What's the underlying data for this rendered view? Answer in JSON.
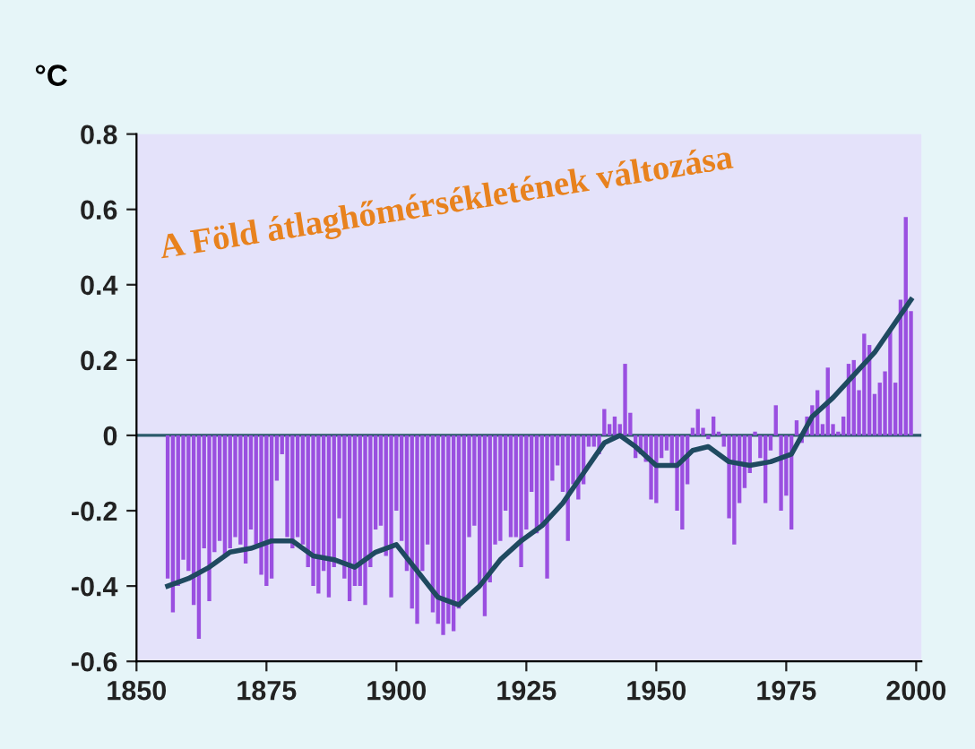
{
  "chart_data": {
    "type": "bar",
    "title": "A Föld átlaghőmérsékletének változása",
    "ylabel": "°C",
    "x": [
      1856,
      1857,
      1858,
      1859,
      1860,
      1861,
      1862,
      1863,
      1864,
      1865,
      1866,
      1867,
      1868,
      1869,
      1870,
      1871,
      1872,
      1873,
      1874,
      1875,
      1876,
      1877,
      1878,
      1879,
      1880,
      1881,
      1882,
      1883,
      1884,
      1885,
      1886,
      1887,
      1888,
      1889,
      1890,
      1891,
      1892,
      1893,
      1894,
      1895,
      1896,
      1897,
      1898,
      1899,
      1900,
      1901,
      1902,
      1903,
      1904,
      1905,
      1906,
      1907,
      1908,
      1909,
      1910,
      1911,
      1912,
      1913,
      1914,
      1915,
      1916,
      1917,
      1918,
      1919,
      1920,
      1921,
      1922,
      1923,
      1924,
      1925,
      1926,
      1927,
      1928,
      1929,
      1930,
      1931,
      1932,
      1933,
      1934,
      1935,
      1936,
      1937,
      1938,
      1939,
      1940,
      1941,
      1942,
      1943,
      1944,
      1945,
      1946,
      1947,
      1948,
      1949,
      1950,
      1951,
      1952,
      1953,
      1954,
      1955,
      1956,
      1957,
      1958,
      1959,
      1960,
      1961,
      1962,
      1963,
      1964,
      1965,
      1966,
      1967,
      1968,
      1969,
      1970,
      1971,
      1972,
      1973,
      1974,
      1975,
      1976,
      1977,
      1978,
      1979,
      1980,
      1981,
      1982,
      1983,
      1984,
      1985,
      1986,
      1987,
      1988,
      1989,
      1990,
      1991,
      1992,
      1993,
      1994,
      1995,
      1996,
      1997,
      1998,
      1999
    ],
    "series": [
      {
        "color": "#9a4fe0",
        "values": [
          -0.38,
          -0.47,
          -0.4,
          -0.33,
          -0.36,
          -0.45,
          -0.54,
          -0.3,
          -0.44,
          -0.31,
          -0.28,
          -0.32,
          -0.3,
          -0.27,
          -0.29,
          -0.34,
          -0.25,
          -0.29,
          -0.37,
          -0.4,
          -0.38,
          -0.12,
          -0.05,
          -0.27,
          -0.3,
          -0.27,
          -0.29,
          -0.35,
          -0.4,
          -0.42,
          -0.36,
          -0.43,
          -0.35,
          -0.22,
          -0.38,
          -0.44,
          -0.4,
          -0.4,
          -0.45,
          -0.35,
          -0.25,
          -0.24,
          -0.32,
          -0.43,
          -0.2,
          -0.28,
          -0.36,
          -0.46,
          -0.5,
          -0.36,
          -0.29,
          -0.47,
          -0.5,
          -0.53,
          -0.5,
          -0.52,
          -0.46,
          -0.44,
          -0.27,
          -0.24,
          -0.4,
          -0.48,
          -0.39,
          -0.29,
          -0.28,
          -0.2,
          -0.27,
          -0.27,
          -0.35,
          -0.25,
          -0.15,
          -0.26,
          -0.24,
          -0.38,
          -0.12,
          -0.08,
          -0.15,
          -0.28,
          -0.13,
          -0.17,
          -0.13,
          -0.03,
          -0.03,
          -0.05,
          0.07,
          0.03,
          0.05,
          0.03,
          0.19,
          0.06,
          -0.06,
          -0.05,
          -0.07,
          -0.17,
          -0.18,
          -0.06,
          -0.04,
          -0.08,
          -0.2,
          -0.25,
          -0.13,
          0.02,
          0.07,
          0.02,
          -0.01,
          0.05,
          0.01,
          -0.03,
          -0.22,
          -0.29,
          -0.18,
          -0.14,
          -0.1,
          0.01,
          -0.06,
          -0.18,
          -0.04,
          0.08,
          -0.2,
          -0.16,
          -0.25,
          0.04,
          -0.02,
          0.05,
          0.08,
          0.12,
          0.03,
          0.18,
          0.03,
          0.01,
          0.05,
          0.19,
          0.2,
          0.12,
          0.27,
          0.24,
          0.11,
          0.14,
          0.17,
          0.28,
          0.14,
          0.36,
          0.58,
          0.33
        ]
      },
      {
        "type": "line",
        "color": "#1f4a60",
        "x": [
          1856,
          1860,
          1864,
          1868,
          1872,
          1876,
          1880,
          1884,
          1888,
          1892,
          1896,
          1900,
          1904,
          1908,
          1912,
          1916,
          1920,
          1924,
          1928,
          1932,
          1936,
          1940,
          1943,
          1946,
          1950,
          1954,
          1957,
          1960,
          1964,
          1968,
          1972,
          1976,
          1980,
          1984,
          1988,
          1992,
          1996,
          1999
        ],
        "values": [
          -0.4,
          -0.38,
          -0.35,
          -0.31,
          -0.3,
          -0.28,
          -0.28,
          -0.32,
          -0.33,
          -0.35,
          -0.31,
          -0.29,
          -0.36,
          -0.43,
          -0.45,
          -0.4,
          -0.33,
          -0.28,
          -0.24,
          -0.18,
          -0.1,
          -0.02,
          0.0,
          -0.03,
          -0.08,
          -0.08,
          -0.04,
          -0.03,
          -0.07,
          -0.08,
          -0.07,
          -0.05,
          0.05,
          0.1,
          0.16,
          0.22,
          0.3,
          0.36
        ]
      }
    ],
    "ref_lines": [
      {
        "axis": "y",
        "value": 0,
        "color": "#2a5a6a"
      }
    ],
    "xlim": [
      1850,
      2001
    ],
    "xticks": [
      1850,
      1875,
      1900,
      1925,
      1950,
      1975,
      2000
    ],
    "ylim": [
      -0.6,
      0.8
    ],
    "yticks": [
      -0.6,
      -0.4,
      -0.2,
      0,
      0.2,
      0.4,
      0.6,
      0.8
    ],
    "grid": false,
    "legend": false
  }
}
